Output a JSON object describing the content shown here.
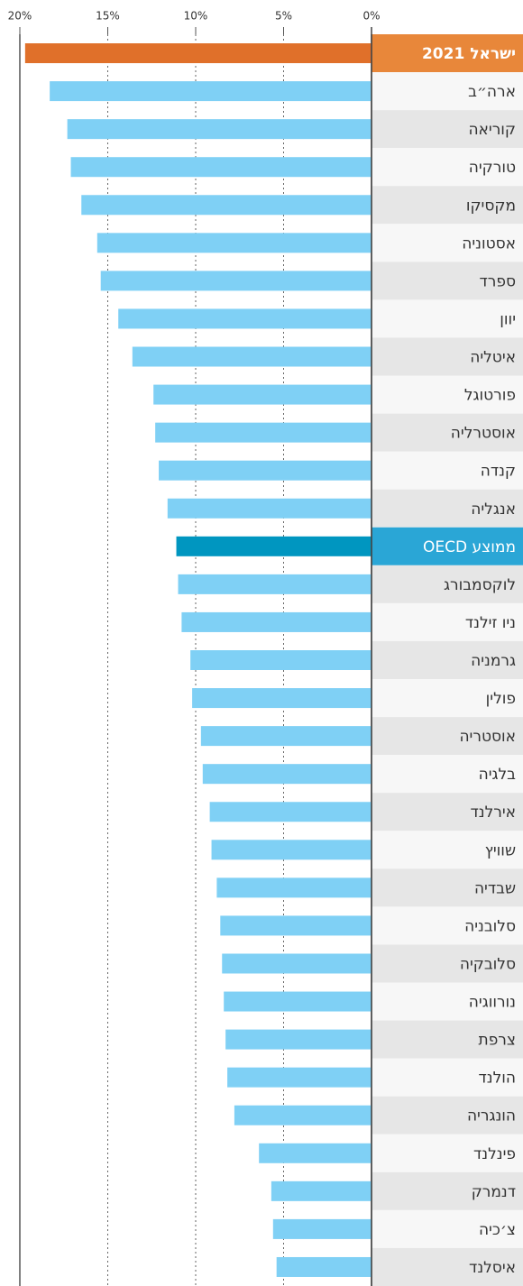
{
  "chart_data": {
    "type": "barh",
    "categories": [
      "ישראל 2021",
      "ארה״ב",
      "קוריאה",
      "טורקיה",
      "מקסיקו",
      "אסטוניה",
      "ספרד",
      "יוון",
      "איטליה",
      "פורטוגל",
      "אוסטרליה",
      "קנדה",
      "אנגליה",
      "ממוצע OECD",
      "לוקסמבורג",
      "ניו זילנד",
      "גרמניה",
      "פולין",
      "אוסטריה",
      "בלגיה",
      "אירלנד",
      "שוויץ",
      "שבדיה",
      "סלובניה",
      "סלובקיה",
      "נורווגיה",
      "צרפת",
      "הולנד",
      "הונגריה",
      "פינלנד",
      "דנמרק",
      "צ׳כיה",
      "איסלנד"
    ],
    "values": [
      19.7,
      18.3,
      17.3,
      17.1,
      16.5,
      15.6,
      15.4,
      14.4,
      13.6,
      12.4,
      12.3,
      12.1,
      11.6,
      11.1,
      11.0,
      10.8,
      10.3,
      10.2,
      9.7,
      9.6,
      9.2,
      9.1,
      8.8,
      8.6,
      8.5,
      8.4,
      8.3,
      8.2,
      7.8,
      6.4,
      5.7,
      5.6,
      5.4
    ],
    "colors": [
      "#e0702a",
      "#7fd0f5",
      "#7fd0f5",
      "#7fd0f5",
      "#7fd0f5",
      "#7fd0f5",
      "#7fd0f5",
      "#7fd0f5",
      "#7fd0f5",
      "#7fd0f5",
      "#7fd0f5",
      "#7fd0f5",
      "#7fd0f5",
      "#0096c0",
      "#7fd0f5",
      "#7fd0f5",
      "#7fd0f5",
      "#7fd0f5",
      "#7fd0f5",
      "#7fd0f5",
      "#7fd0f5",
      "#7fd0f5",
      "#7fd0f5",
      "#7fd0f5",
      "#7fd0f5",
      "#7fd0f5",
      "#7fd0f5",
      "#7fd0f5",
      "#7fd0f5",
      "#7fd0f5",
      "#7fd0f5",
      "#7fd0f5",
      "#7fd0f5"
    ],
    "label_colors": [
      "#e8873a",
      "#f7f7f7",
      "#e6e6e6",
      "#f7f7f7",
      "#e6e6e6",
      "#f7f7f7",
      "#e6e6e6",
      "#f7f7f7",
      "#e6e6e6",
      "#f7f7f7",
      "#e6e6e6",
      "#f7f7f7",
      "#e6e6e6",
      "#2aa6d6",
      "#e6e6e6",
      "#f7f7f7",
      "#e6e6e6",
      "#f7f7f7",
      "#e6e6e6",
      "#f7f7f7",
      "#e6e6e6",
      "#f7f7f7",
      "#e6e6e6",
      "#f7f7f7",
      "#e6e6e6",
      "#f7f7f7",
      "#e6e6e6",
      "#f7f7f7",
      "#e6e6e6",
      "#f7f7f7",
      "#e6e6e6",
      "#f7f7f7",
      "#e6e6e6"
    ],
    "xlim": [
      20,
      0
    ],
    "xticks": [
      {
        "value": 20,
        "label": "20%"
      },
      {
        "value": 15,
        "label": "15%"
      },
      {
        "value": 10,
        "label": "10%"
      },
      {
        "value": 5,
        "label": "5%"
      },
      {
        "value": 0,
        "label": "0%"
      }
    ],
    "grid": true
  }
}
